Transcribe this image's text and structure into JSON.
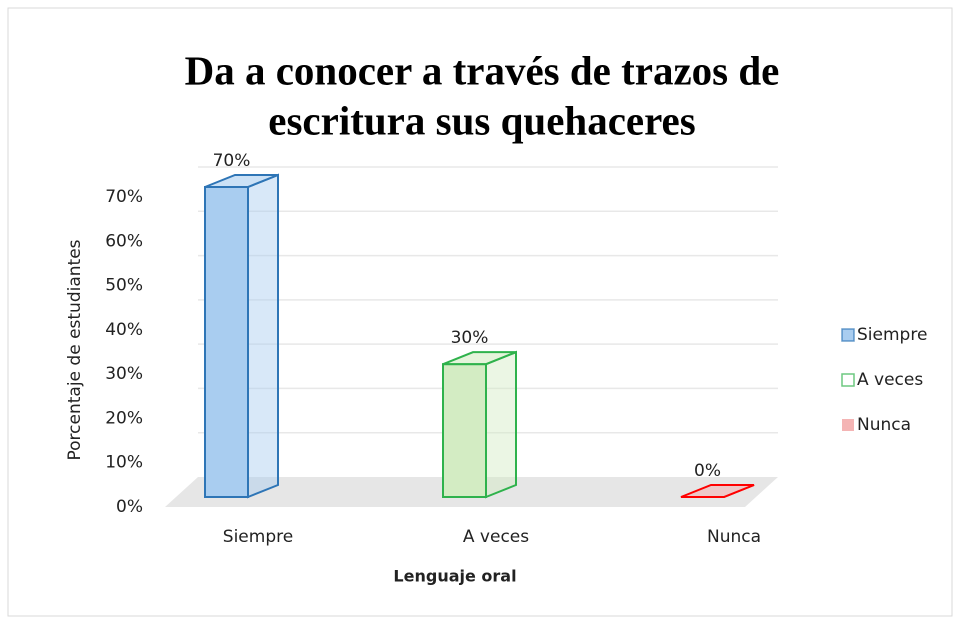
{
  "chart_data": {
    "type": "bar3d",
    "title": [
      "Da a conocer a través de trazos de",
      "escritura sus quehaceres"
    ],
    "x_label": "Lenguaje oral",
    "y_label": "Porcentaje de estudiantes",
    "categories": [
      "Siempre",
      "A veces",
      "Nunca"
    ],
    "values": [
      70,
      30,
      0
    ],
    "value_labels": [
      "70%",
      "30%",
      "0%"
    ],
    "colors": [
      "#a9cdf0",
      "#d3ecc3",
      "#f4b4b4"
    ],
    "edge_colors": [
      "#2e75b6",
      "#2fb24c",
      "#ff0000"
    ],
    "ylim": [
      0,
      70
    ],
    "yticks": [
      {
        "value": 0,
        "label": "0%"
      },
      {
        "value": 10,
        "label": "10%"
      },
      {
        "value": 20,
        "label": "20%"
      },
      {
        "value": 30,
        "label": "30%"
      },
      {
        "value": 40,
        "label": "40%"
      },
      {
        "value": 50,
        "label": "50%"
      },
      {
        "value": 60,
        "label": "60%"
      },
      {
        "value": 70,
        "label": "70%"
      }
    ],
    "grid": true,
    "legend": "right"
  }
}
